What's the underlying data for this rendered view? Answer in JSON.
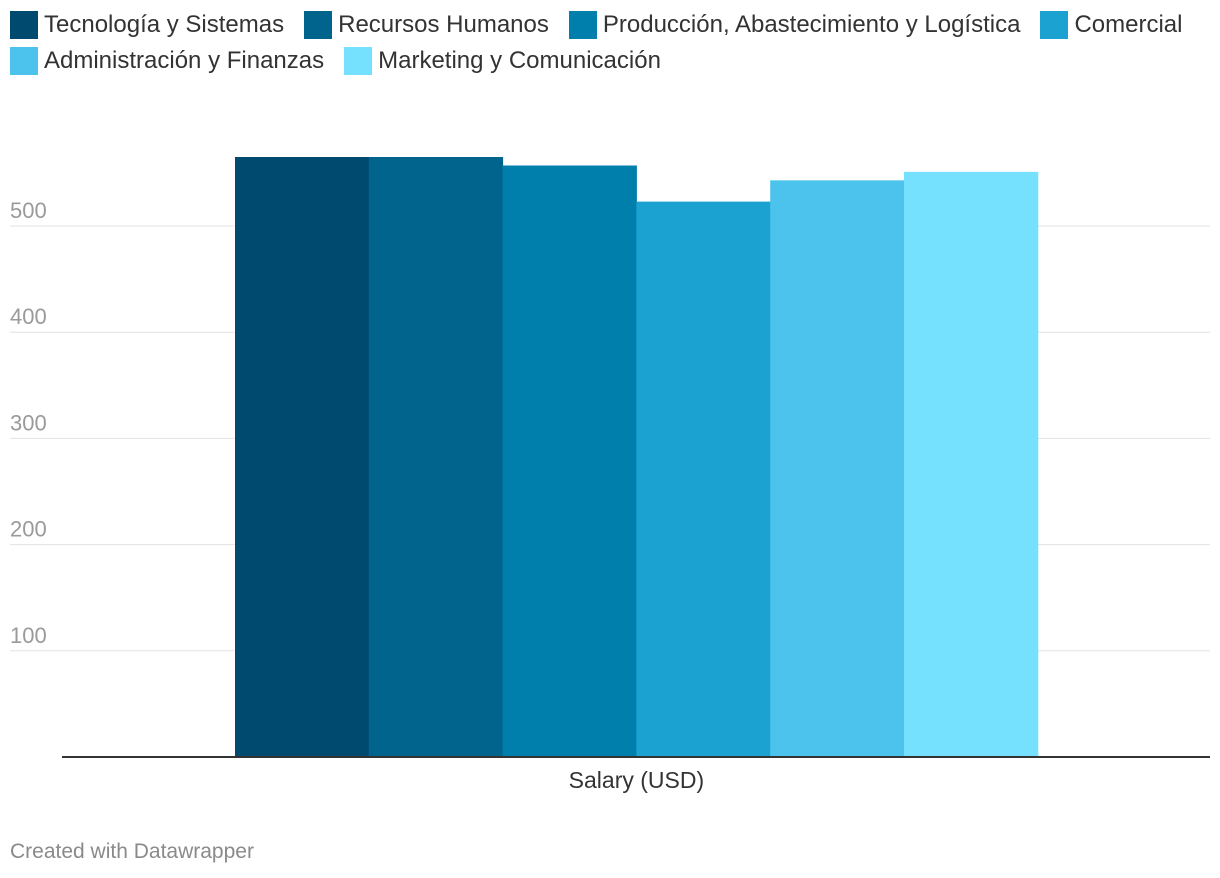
{
  "chart_data": {
    "type": "bar",
    "categories": [
      "Salary (USD)"
    ],
    "series": [
      {
        "name": "Tecnología y Sistemas",
        "values": [
          565
        ],
        "color": "#004a70"
      },
      {
        "name": "Recursos Humanos",
        "values": [
          565
        ],
        "color": "#00648d"
      },
      {
        "name": "Producción, Abastecimiento y Logística",
        "values": [
          557
        ],
        "color": "#007fac"
      },
      {
        "name": "Comercial",
        "values": [
          523
        ],
        "color": "#1ca2d0"
      },
      {
        "name": "Administración y Finanzas",
        "values": [
          543
        ],
        "color": "#4cc3ec"
      },
      {
        "name": "Marketing y Comunicación",
        "values": [
          551
        ],
        "color": "#76e1fe"
      }
    ],
    "yticks": [
      100,
      200,
      300,
      400,
      500
    ],
    "ylim": [
      0,
      565
    ],
    "grid": true,
    "legend_position": "top-left"
  },
  "footer": {
    "credit": "Created with Datawrapper"
  }
}
